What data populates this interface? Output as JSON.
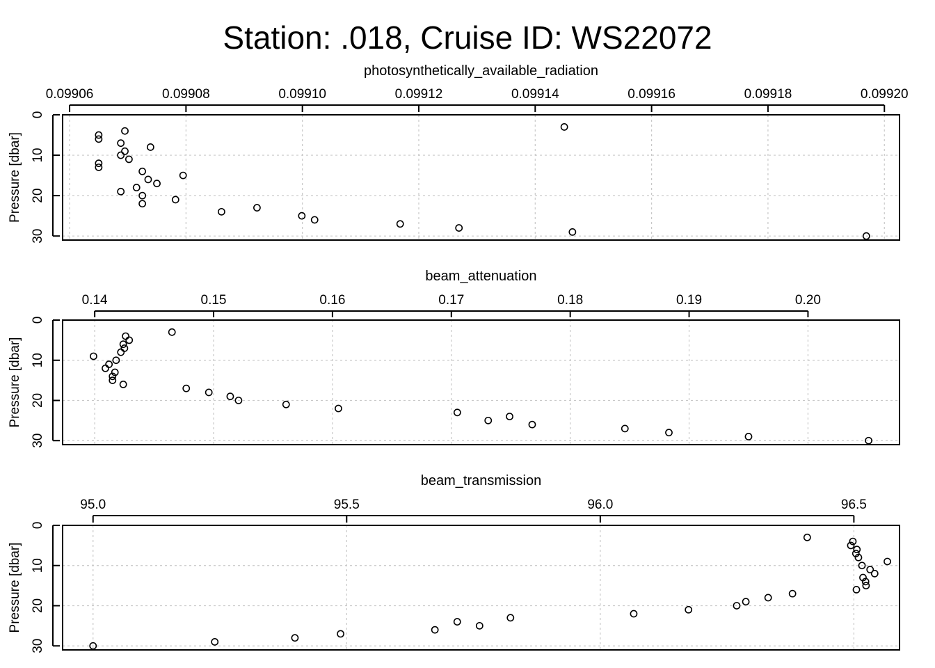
{
  "chart_data": {
    "type": "scatter",
    "title": "Station: .018, Cruise ID: WS22072",
    "panels": [
      {
        "xlabel": "photosynthetically_available_radiation",
        "ylabel": "Pressure [dbar]",
        "xlim": [
          0.0990588,
          0.0992026
        ],
        "ylim": [
          0,
          31
        ],
        "y_reversed": true,
        "grid": true,
        "xticks": [
          "0.09906",
          "0.09908",
          "0.09910",
          "0.09912",
          "0.09914",
          "0.09916",
          "0.09918",
          "0.09920"
        ],
        "yticks": [
          "0",
          "10",
          "20",
          "30"
        ],
        "points": [
          {
            "x": 0.099145,
            "y": 3
          },
          {
            "x": 0.0990695,
            "y": 4
          },
          {
            "x": 0.099065,
            "y": 5
          },
          {
            "x": 0.099065,
            "y": 6
          },
          {
            "x": 0.0990688,
            "y": 7
          },
          {
            "x": 0.0990739,
            "y": 8
          },
          {
            "x": 0.0990695,
            "y": 9
          },
          {
            "x": 0.0990688,
            "y": 10
          },
          {
            "x": 0.0990702,
            "y": 11
          },
          {
            "x": 0.099065,
            "y": 12
          },
          {
            "x": 0.099065,
            "y": 13
          },
          {
            "x": 0.0990725,
            "y": 14
          },
          {
            "x": 0.0990795,
            "y": 15
          },
          {
            "x": 0.0990735,
            "y": 16
          },
          {
            "x": 0.099075,
            "y": 17
          },
          {
            "x": 0.0990715,
            "y": 18
          },
          {
            "x": 0.0990688,
            "y": 19
          },
          {
            "x": 0.0990725,
            "y": 20
          },
          {
            "x": 0.0990782,
            "y": 21
          },
          {
            "x": 0.0990725,
            "y": 22
          },
          {
            "x": 0.0990922,
            "y": 23
          },
          {
            "x": 0.0990861,
            "y": 24
          },
          {
            "x": 0.0990999,
            "y": 25
          },
          {
            "x": 0.0991021,
            "y": 26
          },
          {
            "x": 0.0991168,
            "y": 27
          },
          {
            "x": 0.0991269,
            "y": 28
          },
          {
            "x": 0.0991464,
            "y": 29
          },
          {
            "x": 0.0991969,
            "y": 30
          }
        ]
      },
      {
        "xlabel": "beam_attenuation",
        "ylabel": "Pressure [dbar]",
        "xlim": [
          0.1373,
          0.2077
        ],
        "ylim": [
          0,
          31
        ],
        "y_reversed": true,
        "grid": true,
        "xticks": [
          "0.14",
          "0.15",
          "0.16",
          "0.17",
          "0.18",
          "0.19",
          "0.20"
        ],
        "yticks": [
          "0",
          "10",
          "20",
          "30"
        ],
        "points": [
          {
            "x": 0.1465,
            "y": 3
          },
          {
            "x": 0.1426,
            "y": 4
          },
          {
            "x": 0.1429,
            "y": 5
          },
          {
            "x": 0.1424,
            "y": 6
          },
          {
            "x": 0.1425,
            "y": 7
          },
          {
            "x": 0.1422,
            "y": 8
          },
          {
            "x": 0.1399,
            "y": 9
          },
          {
            "x": 0.1418,
            "y": 10
          },
          {
            "x": 0.1412,
            "y": 11
          },
          {
            "x": 0.1409,
            "y": 12
          },
          {
            "x": 0.1417,
            "y": 13
          },
          {
            "x": 0.1415,
            "y": 14
          },
          {
            "x": 0.1415,
            "y": 15
          },
          {
            "x": 0.1424,
            "y": 16
          },
          {
            "x": 0.1477,
            "y": 17
          },
          {
            "x": 0.1496,
            "y": 18
          },
          {
            "x": 0.1514,
            "y": 19
          },
          {
            "x": 0.1521,
            "y": 20
          },
          {
            "x": 0.1561,
            "y": 21
          },
          {
            "x": 0.1605,
            "y": 22
          },
          {
            "x": 0.1705,
            "y": 23
          },
          {
            "x": 0.1749,
            "y": 24
          },
          {
            "x": 0.1731,
            "y": 25
          },
          {
            "x": 0.1768,
            "y": 26
          },
          {
            "x": 0.1846,
            "y": 27
          },
          {
            "x": 0.1883,
            "y": 28
          },
          {
            "x": 0.195,
            "y": 29
          },
          {
            "x": 0.2051,
            "y": 30
          }
        ]
      },
      {
        "xlabel": "beam_transmission",
        "ylabel": "Pressure [dbar]",
        "xlim": [
          94.94,
          96.59
        ],
        "ylim": [
          0,
          31
        ],
        "y_reversed": true,
        "grid": true,
        "xticks": [
          "95.0",
          "95.5",
          "96.0",
          "96.5"
        ],
        "yticks": [
          "0",
          "10",
          "20",
          "30"
        ],
        "points": [
          {
            "x": 96.408,
            "y": 3
          },
          {
            "x": 96.498,
            "y": 4
          },
          {
            "x": 96.494,
            "y": 5
          },
          {
            "x": 96.506,
            "y": 6
          },
          {
            "x": 96.504,
            "y": 7
          },
          {
            "x": 96.509,
            "y": 8
          },
          {
            "x": 96.566,
            "y": 9
          },
          {
            "x": 96.516,
            "y": 10
          },
          {
            "x": 96.532,
            "y": 11
          },
          {
            "x": 96.541,
            "y": 12
          },
          {
            "x": 96.518,
            "y": 13
          },
          {
            "x": 96.523,
            "y": 14
          },
          {
            "x": 96.524,
            "y": 15
          },
          {
            "x": 96.505,
            "y": 16
          },
          {
            "x": 96.379,
            "y": 17
          },
          {
            "x": 96.331,
            "y": 18
          },
          {
            "x": 96.287,
            "y": 19
          },
          {
            "x": 96.269,
            "y": 20
          },
          {
            "x": 96.174,
            "y": 21
          },
          {
            "x": 96.066,
            "y": 22
          },
          {
            "x": 95.823,
            "y": 23
          },
          {
            "x": 95.718,
            "y": 24
          },
          {
            "x": 95.762,
            "y": 25
          },
          {
            "x": 95.674,
            "y": 26
          },
          {
            "x": 95.488,
            "y": 27
          },
          {
            "x": 95.398,
            "y": 28
          },
          {
            "x": 95.24,
            "y": 29
          },
          {
            "x": 95.0,
            "y": 30
          }
        ]
      }
    ]
  }
}
